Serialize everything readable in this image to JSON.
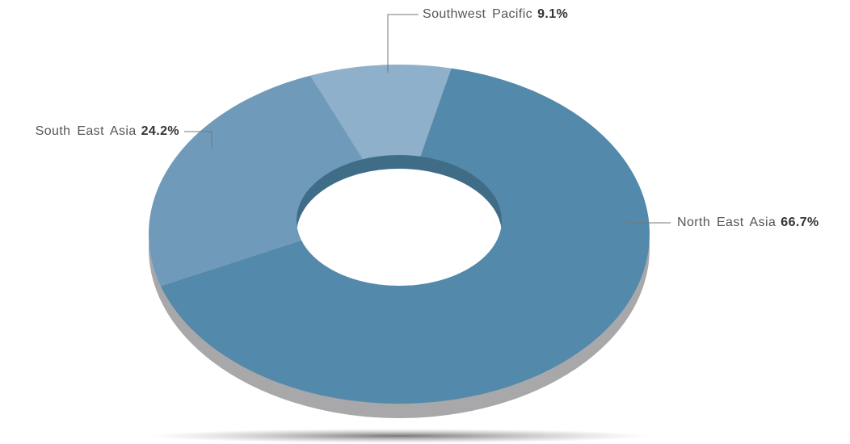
{
  "chart_data": {
    "type": "pie",
    "categories": [
      "North East Asia",
      "South East Asia",
      "Southwest Pacific"
    ],
    "values": [
      66.7,
      24.2,
      9.1
    ],
    "value_labels": [
      "66.7%",
      "24.2%",
      "9.1%"
    ],
    "colors": [
      "#5389aa",
      "#6f9aba",
      "#8fb0ca"
    ]
  }
}
